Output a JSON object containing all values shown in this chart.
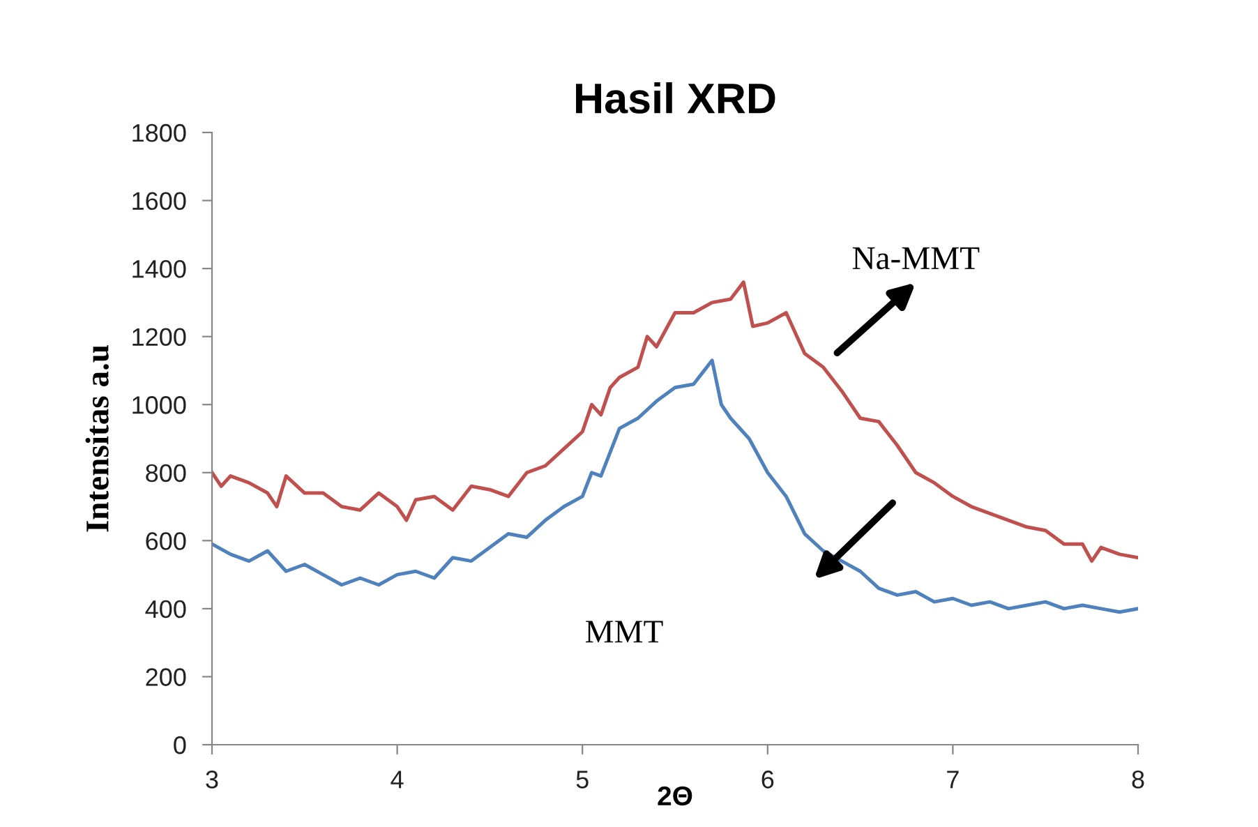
{
  "chart_data": {
    "type": "line",
    "title": "Hasil XRD",
    "xlabel": "2Θ",
    "ylabel": "Intensitas a.u",
    "xlim": [
      3,
      8
    ],
    "xticks": [
      3,
      4,
      5,
      6,
      7,
      8
    ],
    "ylim": [
      0,
      1800
    ],
    "yticks": [
      0,
      200,
      400,
      600,
      800,
      1000,
      1200,
      1400,
      1600,
      1800
    ],
    "grid": false,
    "legend": false,
    "marker": "none",
    "line_style": "solid",
    "series": [
      {
        "color": "#c0504d",
        "x": [
          3.0,
          3.05,
          3.1,
          3.2,
          3.3,
          3.35,
          3.4,
          3.5,
          3.6,
          3.7,
          3.8,
          3.9,
          4.0,
          4.05,
          4.1,
          4.2,
          4.3,
          4.4,
          4.5,
          4.6,
          4.7,
          4.8,
          4.9,
          5.0,
          5.05,
          5.1,
          5.15,
          5.2,
          5.3,
          5.35,
          5.4,
          5.5,
          5.6,
          5.7,
          5.8,
          5.87,
          5.92,
          6.0,
          6.1,
          6.2,
          6.3,
          6.4,
          6.5,
          6.6,
          6.7,
          6.8,
          6.9,
          7.0,
          7.1,
          7.2,
          7.3,
          7.4,
          7.5,
          7.6,
          7.7,
          7.75,
          7.8,
          7.9,
          8.0
        ],
        "values": [
          800,
          760,
          790,
          770,
          740,
          700,
          790,
          740,
          740,
          700,
          690,
          740,
          700,
          660,
          720,
          730,
          690,
          760,
          750,
          730,
          800,
          820,
          870,
          920,
          1000,
          970,
          1050,
          1080,
          1110,
          1200,
          1170,
          1270,
          1270,
          1300,
          1310,
          1360,
          1230,
          1240,
          1270,
          1150,
          1110,
          1040,
          960,
          950,
          880,
          800,
          770,
          730,
          700,
          680,
          660,
          640,
          630,
          590,
          590,
          540,
          580,
          560,
          550
        ]
      },
      {
        "color": "#4f81bd",
        "x": [
          3.0,
          3.1,
          3.2,
          3.3,
          3.4,
          3.5,
          3.6,
          3.7,
          3.8,
          3.9,
          4.0,
          4.1,
          4.2,
          4.3,
          4.4,
          4.5,
          4.6,
          4.7,
          4.8,
          4.9,
          5.0,
          5.05,
          5.1,
          5.2,
          5.3,
          5.4,
          5.5,
          5.6,
          5.7,
          5.75,
          5.8,
          5.9,
          6.0,
          6.1,
          6.2,
          6.3,
          6.4,
          6.5,
          6.6,
          6.7,
          6.8,
          6.9,
          7.0,
          7.1,
          7.2,
          7.3,
          7.4,
          7.5,
          7.6,
          7.7,
          7.8,
          7.9,
          8.0
        ],
        "values": [
          590,
          560,
          540,
          570,
          510,
          530,
          500,
          470,
          490,
          470,
          500,
          510,
          490,
          550,
          540,
          580,
          620,
          610,
          660,
          700,
          730,
          800,
          790,
          930,
          960,
          1010,
          1050,
          1060,
          1130,
          1000,
          960,
          900,
          800,
          730,
          620,
          570,
          540,
          510,
          460,
          440,
          450,
          420,
          430,
          410,
          420,
          400,
          410,
          420,
          400,
          410,
          400,
          390,
          400
        ]
      }
    ],
    "annotations": [
      "Na-MMT",
      "MMT"
    ]
  }
}
